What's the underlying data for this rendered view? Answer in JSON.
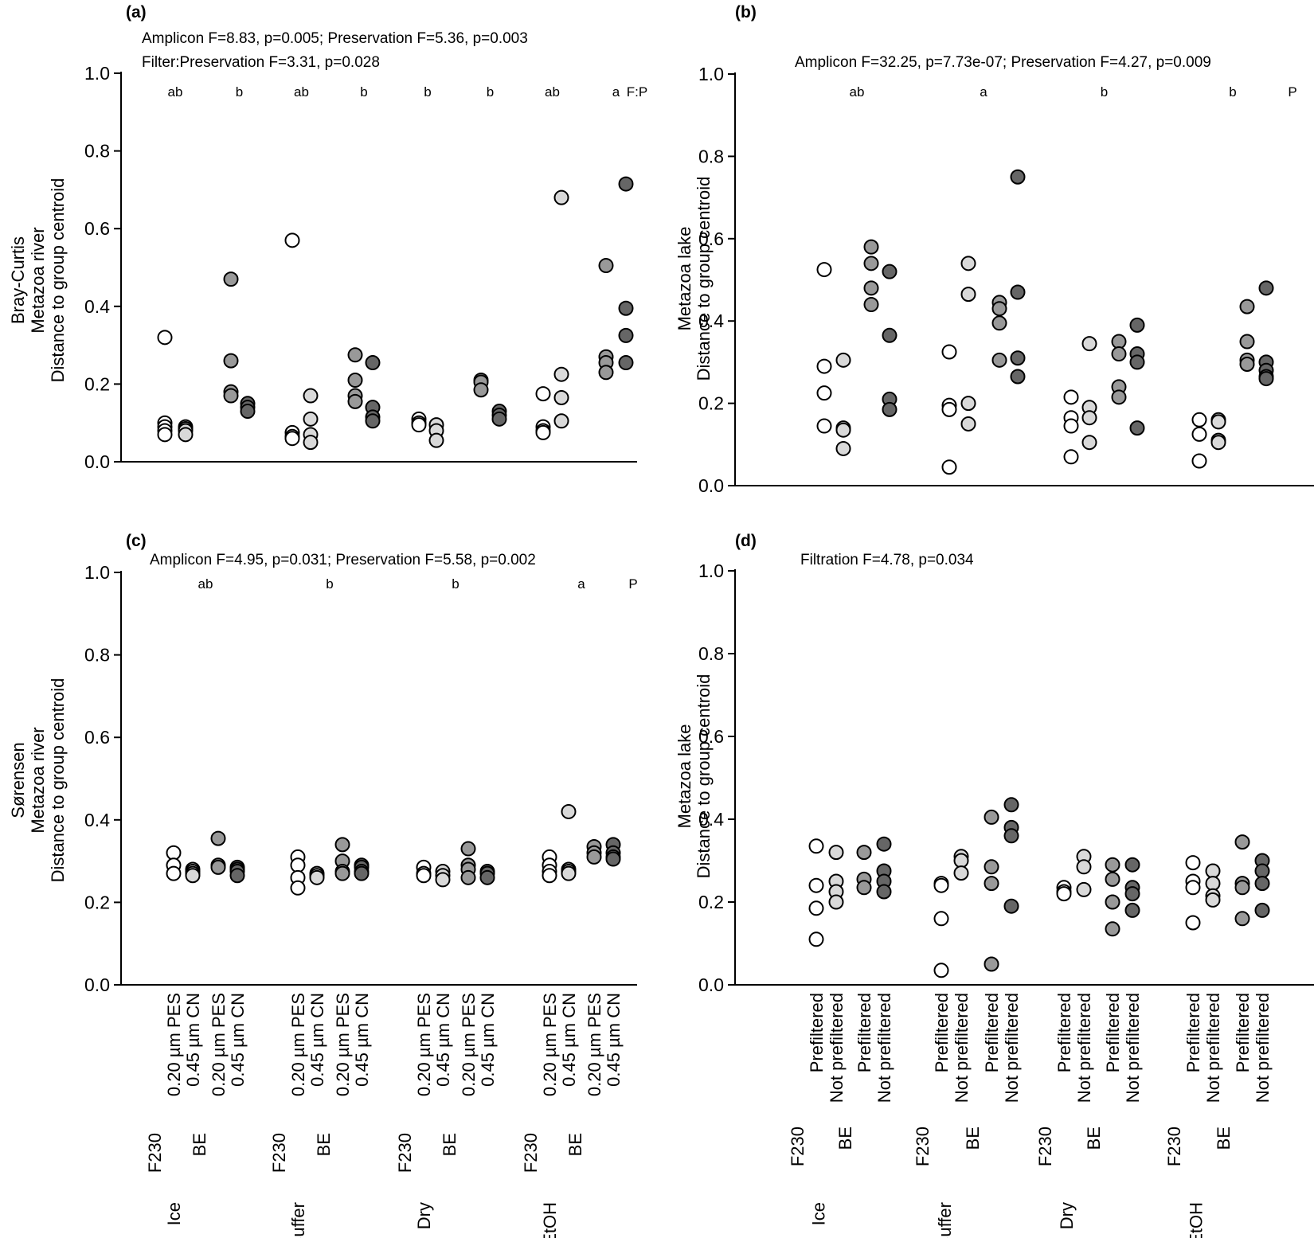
{
  "colors": {
    "F230_PES": "#ffffff",
    "F230_CN": "#d9d9d9",
    "BE_PES": "#999999",
    "BE_CN": "#666666"
  },
  "y_ticks": [
    "0.0",
    "0.2",
    "0.4",
    "0.6",
    "0.8",
    "1.0"
  ],
  "preservation_groups": [
    "Ice",
    "Buffer",
    "Dry",
    "EtOH"
  ],
  "chart_data": [
    {
      "id": "a",
      "type": "scatter",
      "panel_label": "(a)",
      "stats": [
        "Amplicon F=8.83, p=0.005; Preservation F=5.36, p=0.003",
        "Filter:Preservation F=3.31, p=0.028"
      ],
      "ylabel": [
        "Bray-Curtis",
        "Metazoa river",
        "Distance to group centroid"
      ],
      "ylim": [
        0,
        1
      ],
      "letters": [
        [
          "ab",
          "b"
        ],
        [
          "ab",
          "b"
        ],
        [
          "b",
          "b"
        ],
        [
          "ab",
          "a"
        ]
      ],
      "extra_letter": "F:P",
      "groups": [
        {
          "name": "Ice",
          "series": [
            [
              0.32,
              0.1,
              0.09,
              0.08,
              0.07
            ],
            [
              0.09,
              0.085,
              0.08,
              0.07
            ],
            [
              0.47,
              0.26,
              0.18,
              0.17
            ],
            [
              0.15,
              0.14,
              0.13
            ]
          ]
        },
        {
          "name": "Buffer",
          "series": [
            [
              0.57,
              0.075,
              0.065,
              0.06
            ],
            [
              0.17,
              0.11,
              0.07,
              0.05
            ],
            [
              0.275,
              0.21,
              0.17,
              0.155
            ],
            [
              0.255,
              0.14,
              0.115,
              0.105
            ]
          ]
        },
        {
          "name": "Dry",
          "series": [
            [
              0.11,
              0.1,
              0.095
            ],
            [
              0.095,
              0.08,
              0.055
            ],
            [
              0.21,
              0.205,
              0.185
            ],
            [
              0.13,
              0.12,
              0.11
            ]
          ]
        },
        {
          "name": "EtOH",
          "series": [
            [
              0.175,
              0.09,
              0.08,
              0.075
            ],
            [
              0.68,
              0.225,
              0.165,
              0.105
            ],
            [
              0.505,
              0.27,
              0.255,
              0.23
            ],
            [
              0.715,
              0.395,
              0.325,
              0.255
            ]
          ]
        }
      ]
    },
    {
      "id": "b",
      "type": "scatter",
      "panel_label": "(b)",
      "stats": [
        "Amplicon F=32.25, p=7.73e-07; Preservation F=4.27, p=0.009"
      ],
      "ylabel": [
        "Metazoa lake",
        "Distance to group centroid"
      ],
      "ylim": [
        0,
        1
      ],
      "letters": [
        "ab",
        "a",
        "b",
        "b"
      ],
      "extra_letter": "P",
      "groups": [
        {
          "name": "Ice",
          "series": [
            [
              0.525,
              0.29,
              0.225,
              0.145
            ],
            [
              0.305,
              0.14,
              0.135,
              0.09
            ],
            [
              0.58,
              0.54,
              0.48,
              0.44
            ],
            [
              0.52,
              0.365,
              0.21,
              0.185
            ]
          ]
        },
        {
          "name": "Buffer",
          "series": [
            [
              0.325,
              0.195,
              0.185,
              0.045
            ],
            [
              0.54,
              0.465,
              0.2,
              0.15
            ],
            [
              0.445,
              0.43,
              0.395,
              0.305
            ],
            [
              0.75,
              0.47,
              0.31,
              0.265
            ]
          ]
        },
        {
          "name": "Dry",
          "series": [
            [
              0.215,
              0.165,
              0.145,
              0.07
            ],
            [
              0.345,
              0.19,
              0.165,
              0.105
            ],
            [
              0.35,
              0.32,
              0.24,
              0.215
            ],
            [
              0.39,
              0.32,
              0.3,
              0.14
            ]
          ]
        },
        {
          "name": "EtOH",
          "series": [
            [
              0.16,
              0.125,
              0.06
            ],
            [
              0.16,
              0.155,
              0.11,
              0.105
            ],
            [
              0.435,
              0.35,
              0.305,
              0.295
            ],
            [
              0.48,
              0.3,
              0.28,
              0.265,
              0.26
            ]
          ]
        }
      ]
    },
    {
      "id": "c",
      "type": "scatter",
      "panel_label": "(c)",
      "stats": [
        "Amplicon F=4.95, p=0.031; Preservation F=5.58, p=0.002"
      ],
      "ylabel": [
        "Sørensen",
        "Metazoa river",
        "Distance to group centroid"
      ],
      "ylim": [
        0,
        1
      ],
      "letters": [
        "ab",
        "b",
        "b",
        "a"
      ],
      "extra_letter": "P",
      "x_categories": [
        [
          "F230",
          "0.20 µm PES"
        ],
        [
          "",
          "0.45 µm CN"
        ],
        [
          "BE",
          "0.20 µm PES"
        ],
        [
          "",
          "0.45 µm CN"
        ]
      ],
      "groups": [
        {
          "name": "Ice",
          "series": [
            [
              0.32,
              0.29,
              0.27
            ],
            [
              0.28,
              0.275,
              0.27,
              0.265
            ],
            [
              0.355,
              0.29,
              0.285
            ],
            [
              0.285,
              0.28,
              0.275,
              0.265
            ]
          ]
        },
        {
          "name": "Buffer",
          "series": [
            [
              0.31,
              0.29,
              0.26,
              0.235
            ],
            [
              0.27,
              0.265,
              0.26
            ],
            [
              0.34,
              0.3,
              0.275,
              0.27
            ],
            [
              0.29,
              0.285,
              0.275,
              0.27
            ]
          ]
        },
        {
          "name": "Dry",
          "series": [
            [
              0.285,
              0.27,
              0.265
            ],
            [
              0.275,
              0.265,
              0.255
            ],
            [
              0.33,
              0.29,
              0.28,
              0.26
            ],
            [
              0.275,
              0.27,
              0.26
            ]
          ]
        },
        {
          "name": "EtOH",
          "series": [
            [
              0.31,
              0.29,
              0.275,
              0.265
            ],
            [
              0.42,
              0.28,
              0.275,
              0.27
            ],
            [
              0.335,
              0.32,
              0.31
            ],
            [
              0.34,
              0.32,
              0.31,
              0.305
            ]
          ]
        }
      ]
    },
    {
      "id": "d",
      "type": "scatter",
      "panel_label": "(d)",
      "stats": [
        "Filtration F=4.78, p=0.034"
      ],
      "ylabel": [
        "Metazoa lake",
        "Distance to group centroid"
      ],
      "ylim": [
        0,
        1
      ],
      "letters": [],
      "extra_letter": "",
      "x_categories": [
        [
          "F230",
          "Prefiltered"
        ],
        [
          "",
          "Not prefiltered"
        ],
        [
          "BE",
          "Prefiltered"
        ],
        [
          "",
          "Not prefiltered"
        ]
      ],
      "groups": [
        {
          "name": "Ice",
          "series": [
            [
              0.335,
              0.24,
              0.185,
              0.11
            ],
            [
              0.32,
              0.25,
              0.225,
              0.2
            ],
            [
              0.32,
              0.255,
              0.235
            ],
            [
              0.34,
              0.275,
              0.25,
              0.225
            ]
          ]
        },
        {
          "name": "Buffer",
          "series": [
            [
              0.245,
              0.24,
              0.16,
              0.035
            ],
            [
              0.31,
              0.3,
              0.27
            ],
            [
              0.405,
              0.285,
              0.245,
              0.05
            ],
            [
              0.435,
              0.38,
              0.36,
              0.19
            ]
          ]
        },
        {
          "name": "Dry",
          "series": [
            [
              0.235,
              0.225,
              0.22
            ],
            [
              0.31,
              0.285,
              0.23
            ],
            [
              0.29,
              0.255,
              0.2,
              0.135
            ],
            [
              0.29,
              0.235,
              0.22,
              0.18
            ]
          ]
        },
        {
          "name": "EtOH",
          "series": [
            [
              0.295,
              0.25,
              0.235,
              0.15
            ],
            [
              0.275,
              0.245,
              0.215,
              0.205
            ],
            [
              0.345,
              0.245,
              0.235,
              0.16
            ],
            [
              0.3,
              0.275,
              0.245,
              0.18
            ]
          ]
        }
      ]
    }
  ]
}
